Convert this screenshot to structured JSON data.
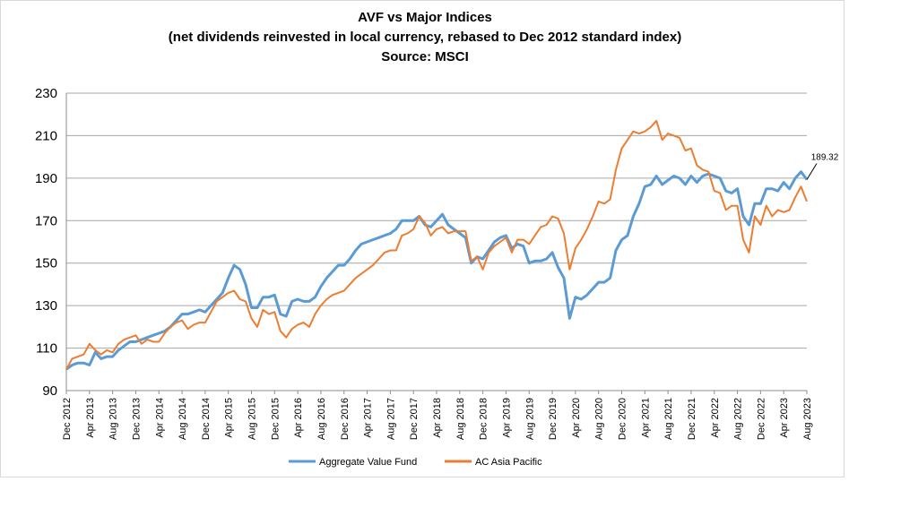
{
  "chart_data": {
    "type": "line",
    "title": [
      "AVF vs Major  Indices",
      "(net dividends reinvested in local currency, rebased to Dec 2012 standard index)",
      "Source: MSCI"
    ],
    "ylim": [
      90,
      230
    ],
    "yticks": [
      90,
      110,
      130,
      150,
      170,
      190,
      210,
      230
    ],
    "grid": "horizontal",
    "legend_position": "bottom",
    "xtick_labels": [
      "Dec 2012",
      "Apr 2013",
      "Aug 2013",
      "Dec 2013",
      "Apr 2014",
      "Aug 2014",
      "Dec 2014",
      "Apr 2015",
      "Aug 2015",
      "Dec 2015",
      "Apr 2016",
      "Aug 2016",
      "Dec 2016",
      "Apr 2017",
      "Aug 2017",
      "Dec 2017",
      "Apr 2018",
      "Aug 2018",
      "Dec 2018",
      "Apr 2019",
      "Aug 2019",
      "Dec 2019",
      "Apr 2020",
      "Aug 2020",
      "Dec 2020",
      "Apr 2021",
      "Aug 2021",
      "Dec 2021",
      "Apr 2022",
      "Aug 2022",
      "Dec 2022",
      "Apr 2023",
      "Aug 2023"
    ],
    "x_points_per_tick": 4,
    "series": [
      {
        "name": "Aggregate Value Fund",
        "color": "#5b9bd5",
        "values": [
          100,
          102,
          103,
          103,
          102,
          108,
          105,
          106,
          106,
          109,
          111,
          113,
          113,
          114,
          115,
          116,
          117,
          118,
          120,
          123,
          126,
          126,
          127,
          128,
          127,
          130,
          133,
          136,
          143,
          149,
          147,
          140,
          129,
          129,
          134,
          134,
          135,
          126,
          125,
          132,
          133,
          132,
          132,
          134,
          139,
          143,
          146,
          149,
          149,
          152,
          156,
          159,
          160,
          161,
          162,
          163,
          164,
          166,
          170,
          170,
          170,
          172,
          168,
          167,
          170,
          173,
          168,
          166,
          164,
          162,
          150,
          153,
          152,
          156,
          160,
          162,
          163,
          157,
          159,
          158,
          150,
          151,
          151,
          152,
          155,
          148,
          143,
          124,
          134,
          133,
          135,
          138,
          141,
          141,
          143,
          156,
          161,
          163,
          172,
          178,
          186,
          187,
          191,
          187,
          189,
          191,
          190,
          187,
          191,
          188,
          191,
          192,
          191,
          190,
          184,
          183,
          185,
          172,
          168,
          178,
          178,
          185,
          185,
          184,
          188,
          185,
          190,
          193,
          189.32
        ],
        "last_value_label": "189.32"
      },
      {
        "name": "AC Asia Pacific",
        "color": "#ed7d31",
        "values": [
          100,
          105,
          106,
          107,
          112,
          109,
          107,
          109,
          108,
          112,
          114,
          115,
          116,
          112,
          114,
          113,
          113,
          117,
          120,
          122,
          123,
          119,
          121,
          122,
          122,
          127,
          132,
          134,
          136,
          137,
          133,
          132,
          124,
          120,
          128,
          126,
          127,
          118,
          115,
          119,
          121,
          122,
          120,
          126,
          130,
          133,
          135,
          136,
          137,
          140,
          143,
          145,
          147,
          149,
          152,
          155,
          156,
          156,
          163,
          164,
          166,
          172,
          169,
          163,
          166,
          167,
          164,
          165,
          165,
          165,
          151,
          153,
          147,
          155,
          158,
          160,
          162,
          155,
          161,
          161,
          159,
          163,
          167,
          168,
          172,
          171,
          164,
          147,
          157,
          161,
          166,
          172,
          179,
          178,
          180,
          194,
          204,
          208,
          212,
          211,
          212,
          214,
          217,
          208,
          211,
          210,
          209,
          203,
          204,
          196,
          194,
          193,
          184,
          183,
          175,
          177,
          177,
          161,
          155,
          172,
          168,
          177,
          172,
          175,
          174,
          175,
          181,
          186,
          179
        ]
      }
    ]
  },
  "annotation": {
    "text": "189.32"
  },
  "legend": {
    "items": [
      {
        "label": "Aggregate Value Fund",
        "color": "#5b9bd5"
      },
      {
        "label": "AC Asia Pacific",
        "color": "#ed7d31"
      }
    ]
  }
}
